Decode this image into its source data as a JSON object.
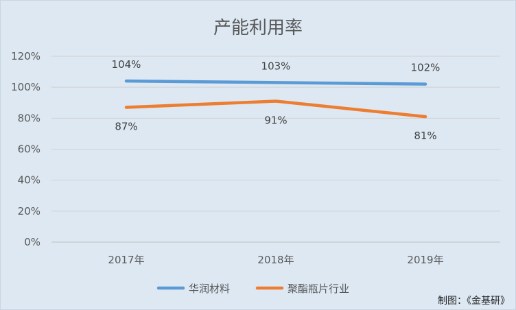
{
  "chart_data": {
    "type": "line",
    "title": "产能利用率",
    "categories": [
      "2017年",
      "2018年",
      "2019年"
    ],
    "series": [
      {
        "name": "华润材料",
        "values": [
          104,
          103,
          102
        ],
        "labels": [
          "104%",
          "103%",
          "102%"
        ],
        "color": "#5b9bd5",
        "label_position": "above"
      },
      {
        "name": "聚酯瓶片行业",
        "values": [
          87,
          91,
          81
        ],
        "labels": [
          "87%",
          "91%",
          "81%"
        ],
        "color": "#ed7d31",
        "label_position": "below"
      }
    ],
    "yticks": [
      "0%",
      "20%",
      "40%",
      "60%",
      "80%",
      "100%",
      "120%"
    ],
    "ylim": [
      0,
      120
    ],
    "grid": true,
    "legend": "bottom-center"
  },
  "credit": "制图：《金基研》",
  "colors": {
    "background": "#dde8f3",
    "gridline": "#d0d0d0"
  }
}
